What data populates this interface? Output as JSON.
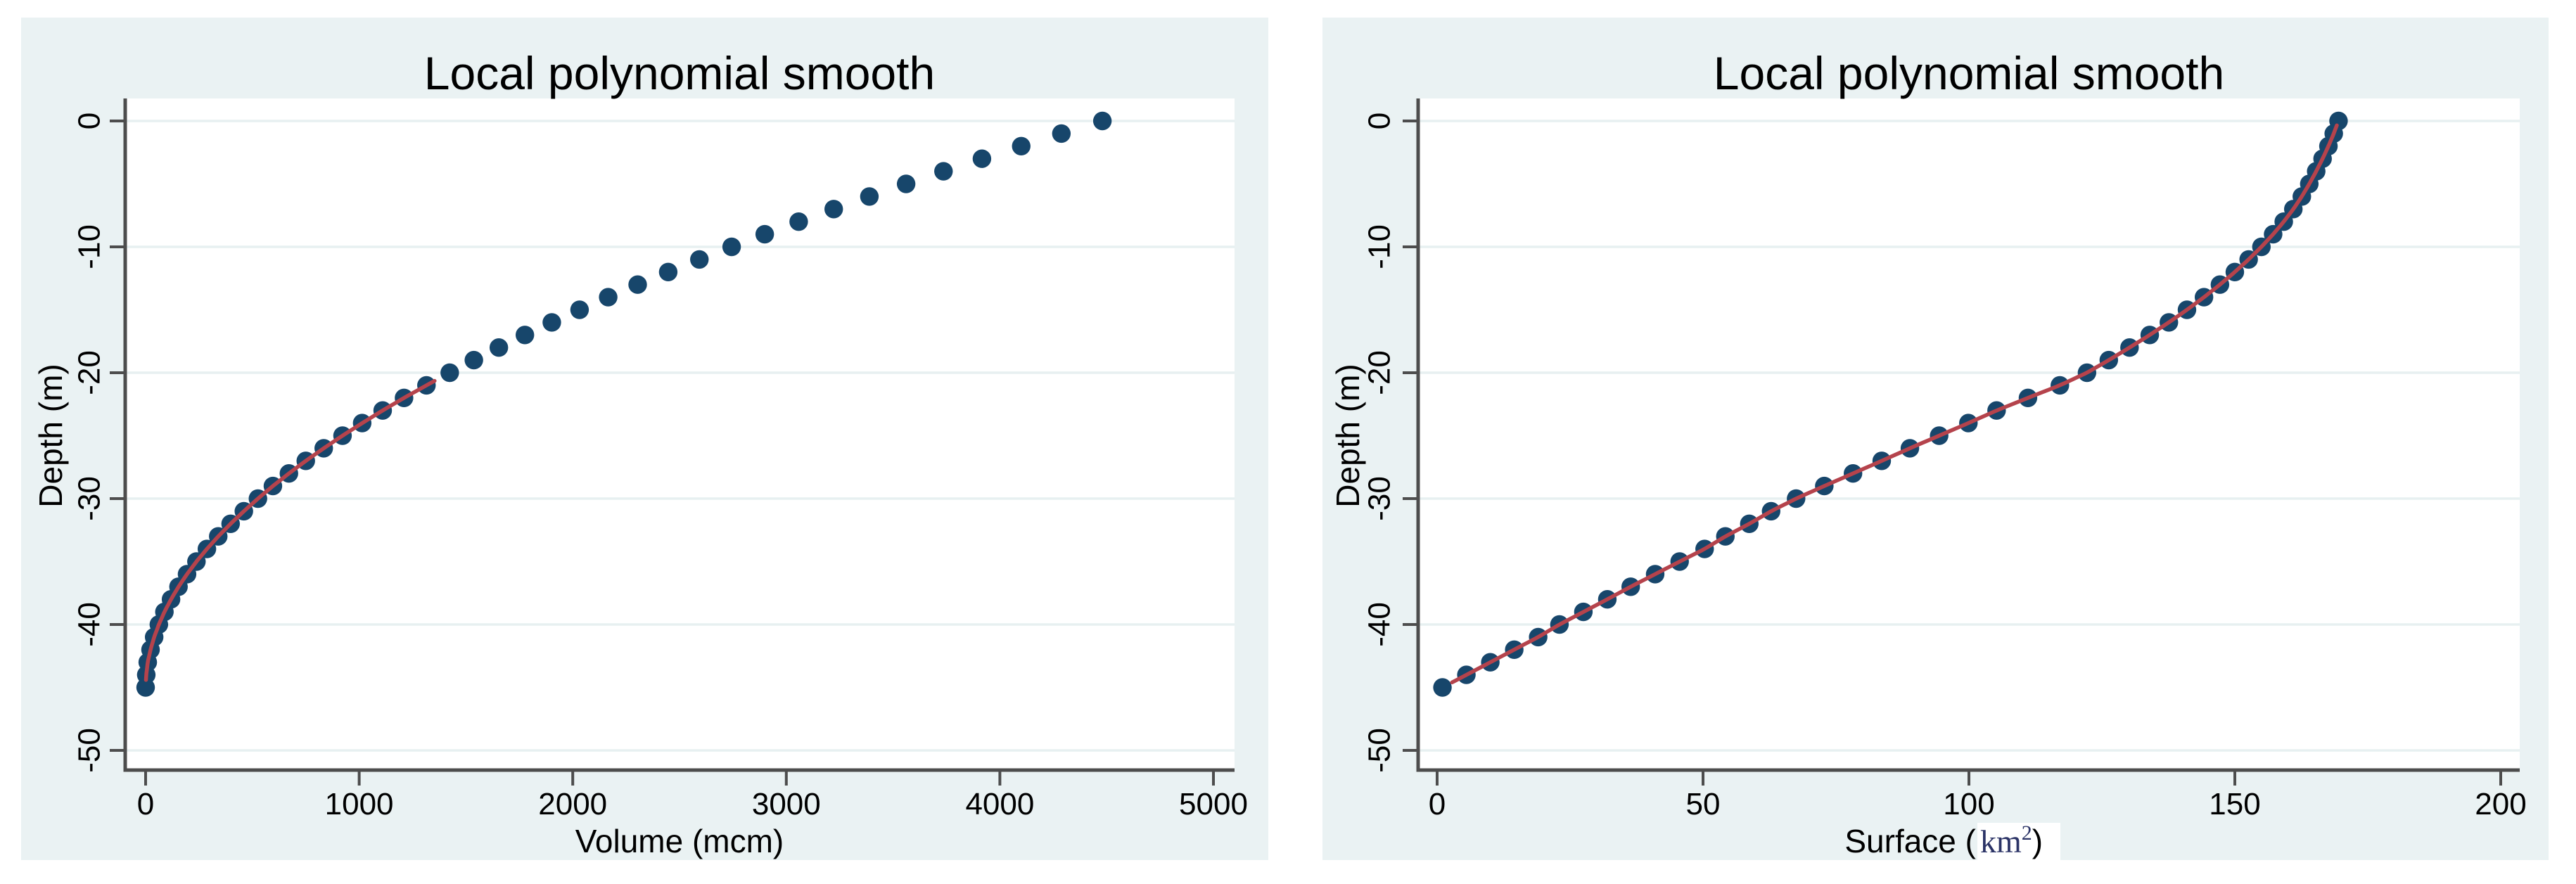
{
  "style": {
    "page_bg": "#ffffff",
    "figure_bg": "#eaf2f3",
    "plot_bg": "#ffffff",
    "grid_color": "#e7f0f1",
    "axis_color": "#4d4d4d",
    "tick_label_color": "#000000",
    "title_color": "#17335f",
    "marker_color": "#17466b",
    "smooth_line_color": "#b5434c",
    "math_label_color": "#2b3366"
  },
  "chart_data": [
    {
      "type": "scatter",
      "title": "Local polynomial smooth",
      "xlabel": "Volume (mcm)",
      "ylabel": "Depth (m)",
      "xlim": [
        0,
        5000
      ],
      "ylim": [
        -50,
        0
      ],
      "xticks": [
        0,
        1000,
        2000,
        3000,
        4000,
        5000
      ],
      "yticks": [
        0,
        -10,
        -20,
        -30,
        -40,
        -50
      ],
      "grid": "horizontal",
      "legend": "none",
      "series": [
        {
          "name": "depth vs volume scatter",
          "type": "scatter",
          "depth": [
            0,
            -1,
            -2,
            -3,
            -4,
            -5,
            -6,
            -7,
            -8,
            -9,
            -10,
            -11,
            -12,
            -13,
            -14,
            -15,
            -16,
            -17,
            -18,
            -19,
            -20,
            -21,
            -22,
            -23,
            -24,
            -25,
            -26,
            -27,
            -28,
            -29,
            -30,
            -31,
            -32,
            -33,
            -34,
            -35,
            -36,
            -37,
            -38,
            -39,
            -40,
            -41,
            -42,
            -43,
            -44,
            -45
          ],
          "values": [
            4480,
            4288,
            4100,
            3916,
            3736,
            3561,
            3389,
            3222,
            3058,
            2899,
            2744,
            2593,
            2447,
            2304,
            2166,
            2032,
            1902,
            1776,
            1654,
            1537,
            1424,
            1315,
            1210,
            1110,
            1014,
            922,
            834,
            750,
            671,
            596,
            526,
            460,
            398,
            340,
            287,
            238,
            194,
            154,
            119,
            88,
            62,
            40,
            23,
            10,
            3,
            0
          ]
        },
        {
          "name": "lpoly smooth line",
          "type": "line",
          "depth_from": -44.4,
          "depth_to": -20.5
        }
      ]
    },
    {
      "type": "scatter",
      "title": "Local polynomial smooth",
      "xlabel": "Surface (km2)",
      "xlabel_parts": {
        "prefix": "Surface (",
        "math": "km",
        "sup": "2",
        "suffix": ")"
      },
      "ylabel": "Depth (m)",
      "xlim": [
        0,
        200
      ],
      "ylim": [
        -50,
        0
      ],
      "xticks": [
        0,
        50,
        100,
        150,
        200
      ],
      "yticks": [
        0,
        -10,
        -20,
        -30,
        -40,
        -50
      ],
      "grid": "horizontal",
      "legend": "none",
      "series": [
        {
          "name": "depth vs surface scatter",
          "type": "scatter",
          "depth": [
            0,
            -1,
            -2,
            -3,
            -4,
            -5,
            -6,
            -7,
            -8,
            -9,
            -10,
            -11,
            -12,
            -13,
            -14,
            -15,
            -16,
            -17,
            -18,
            -19,
            -20,
            -21,
            -22,
            -23,
            -24,
            -25,
            -26,
            -27,
            -28,
            -29,
            -30,
            -31,
            -32,
            -33,
            -34,
            -35,
            -36,
            -37,
            -38,
            -39,
            -40,
            -41,
            -42,
            -43,
            -44,
            -45
          ],
          "values": [
            169.5,
            168.6,
            167.6,
            166.5,
            165.3,
            164,
            162.6,
            161,
            159.2,
            157.2,
            155,
            152.6,
            150,
            147.2,
            144.2,
            141,
            137.6,
            134,
            130.2,
            126.3,
            122.2,
            117.1,
            111.1,
            105.2,
            99.9,
            94.4,
            88.9,
            83.6,
            78.2,
            72.8,
            67.5,
            62.8,
            58.7,
            54.2,
            50.3,
            45.6,
            41,
            36.4,
            32,
            27.5,
            23,
            19,
            14.5,
            10,
            5.5,
            1
          ]
        },
        {
          "name": "lpoly smooth line",
          "type": "line",
          "depth_from": -44.6,
          "depth_to": -0.35
        }
      ]
    }
  ]
}
